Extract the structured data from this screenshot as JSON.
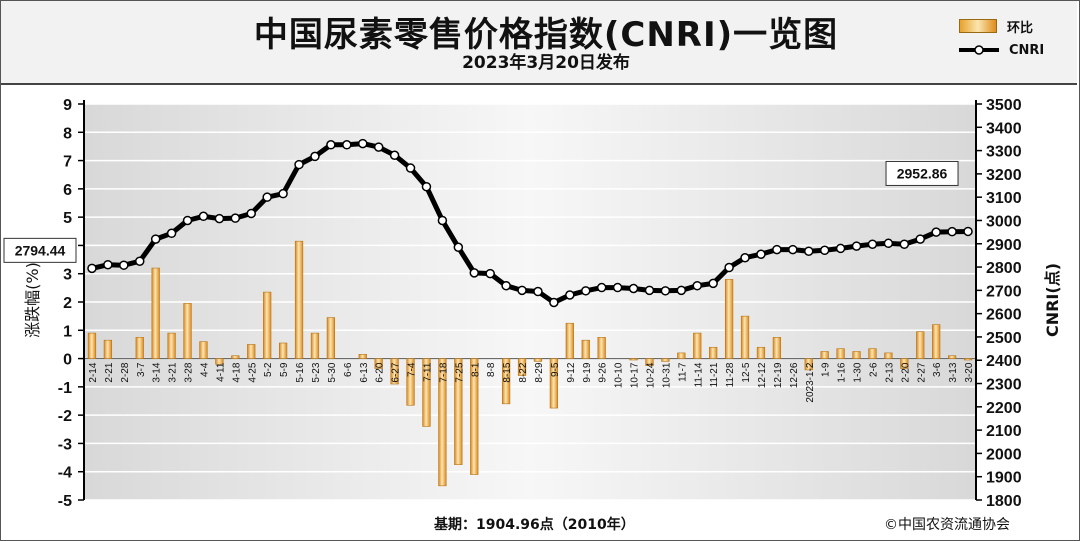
{
  "header": {
    "title": "中国尿素零售价格指数(CNRI)一览图",
    "subtitle": "2023年3月20日发布"
  },
  "legend": {
    "bar_label": "环比",
    "line_label": "CNRI"
  },
  "footer": {
    "base": "基期：1904.96点（2010年）",
    "copyright": "©中国农资流通协会"
  },
  "colors": {
    "bar": "#e8a22a",
    "line": "#000000",
    "marker": "#ffffff"
  },
  "chart_data": {
    "type": "bar+line",
    "categories": [
      "2-14",
      "2-21",
      "2-28",
      "3-7",
      "3-14",
      "3-21",
      "3-28",
      "4-4",
      "4-11",
      "4-18",
      "4-25",
      "5-2",
      "5-9",
      "5-16",
      "5-23",
      "5-30",
      "6-6",
      "6-13",
      "6-20",
      "6-27",
      "7-4",
      "7-11",
      "7-18",
      "7-25",
      "8-1",
      "8-8",
      "8-15",
      "8-22",
      "8-29",
      "9-5",
      "9-12",
      "9-19",
      "9-26",
      "10-10",
      "10-17",
      "10-24",
      "10-31",
      "11-7",
      "11-14",
      "11-21",
      "11-28",
      "12-5",
      "12-12",
      "12-19",
      "12-26",
      "2023-1-2",
      "1-9",
      "1-16",
      "1-30",
      "2-6",
      "2-13",
      "2-20",
      "2-27",
      "3-6",
      "3-13",
      "3-20"
    ],
    "series": [
      {
        "name": "环比",
        "axis": "left",
        "type": "bar",
        "values": [
          0.9,
          0.65,
          0,
          0.75,
          3.2,
          0.9,
          1.95,
          0.6,
          -0.2,
          0.1,
          0.5,
          2.35,
          0.55,
          4.15,
          0.9,
          1.45,
          0,
          0.15,
          -0.35,
          -0.9,
          -1.65,
          -2.4,
          -4.5,
          -3.75,
          -4.1,
          0,
          -1.6,
          -0.6,
          -0.1,
          -1.75,
          1.25,
          0.65,
          0.75,
          0,
          -0.05,
          -0.25,
          -0.1,
          0.2,
          0.9,
          0.4,
          2.8,
          1.5,
          0.4,
          0.75,
          0,
          -0.4,
          0.25,
          0.35,
          0.25,
          0.35,
          0.2,
          -0.35,
          0.95,
          1.2,
          0.1,
          -0.05
        ]
      },
      {
        "name": "CNRI",
        "axis": "right",
        "type": "line",
        "values": [
          2794.44,
          2810,
          2808,
          2825,
          2920,
          2945,
          3000,
          3018,
          3008,
          3010,
          3030,
          3100,
          3115,
          3240,
          3275,
          3325,
          3325,
          3330,
          3315,
          3280,
          3225,
          3145,
          3000,
          2885,
          2775,
          2772,
          2720,
          2700,
          2695,
          2648,
          2680,
          2698,
          2712,
          2712,
          2708,
          2700,
          2698,
          2700,
          2720,
          2730,
          2798,
          2840,
          2855,
          2875,
          2875,
          2868,
          2872,
          2880,
          2890,
          2898,
          2902,
          2898,
          2920,
          2950,
          2952,
          2952.86
        ]
      }
    ],
    "y_left": {
      "label": "涨跌幅(%)",
      "min": -5,
      "max": 9,
      "ticks": [
        -5,
        -4,
        -3,
        -2,
        -1,
        0,
        1,
        2,
        3,
        4,
        5,
        6,
        7,
        8,
        9
      ]
    },
    "y_right": {
      "label": "CNRI(点)",
      "min": 1800,
      "max": 3500,
      "ticks": [
        1800,
        1900,
        2000,
        2100,
        2200,
        2300,
        2400,
        2500,
        2600,
        2700,
        2800,
        2900,
        3000,
        3100,
        3200,
        3300,
        3400,
        3500
      ]
    },
    "annotations": [
      {
        "text": "2794.44",
        "index": 0
      },
      {
        "text": "2952.86",
        "index": 55
      }
    ],
    "grid": true,
    "legend_position": "top-right"
  }
}
